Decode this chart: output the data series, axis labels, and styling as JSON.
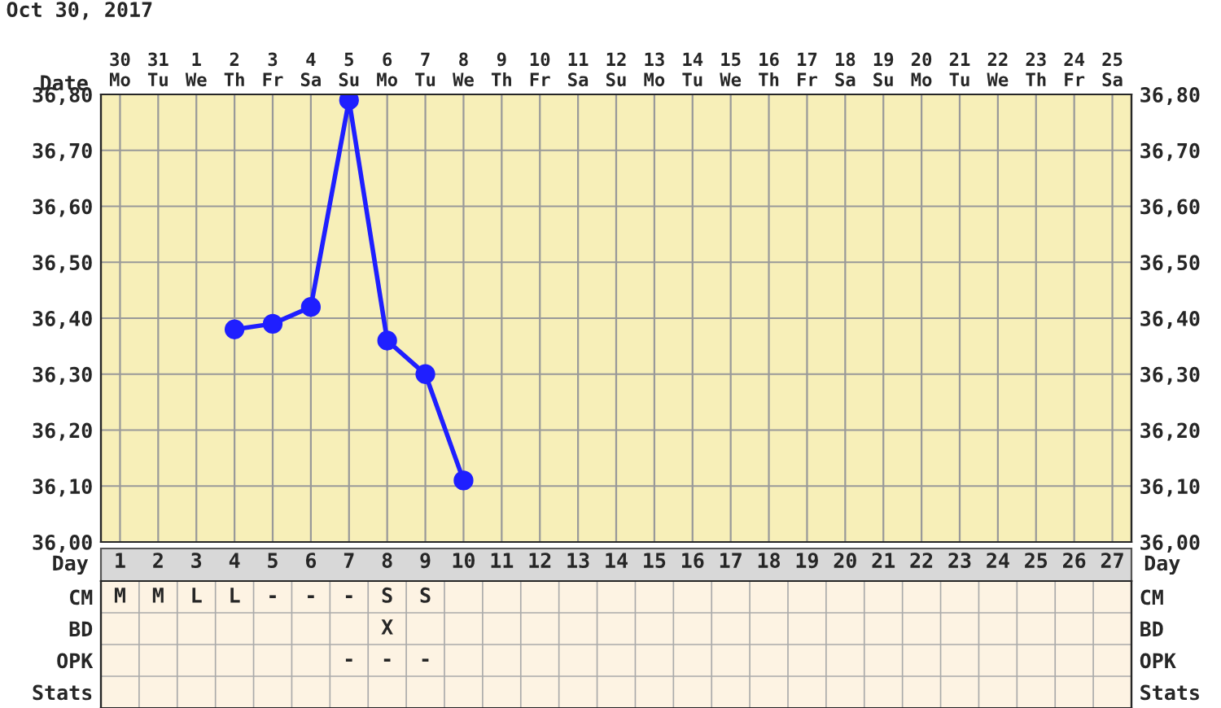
{
  "chart_data": [
    {
      "type": "line",
      "title": "Oct 30, 2017",
      "xlabel": "Date",
      "categories": [
        "30\nMo",
        "31\nTu",
        "1\nWe",
        "2\nTh",
        "3\nFr",
        "4\nSa",
        "5\nSu",
        "6\nMo",
        "7\nTu",
        "8\nWe",
        "9\nTh",
        "10\nFr",
        "11\nSa",
        "12\nSu",
        "13\nMo",
        "14\nTu",
        "15\nWe",
        "16\nTh",
        "17\nFr",
        "18\nSa",
        "19\nSu",
        "20\nMo",
        "21\nTu",
        "22\nWe",
        "23\nTh",
        "24\nFr",
        "25\nSa"
      ],
      "series": [
        {
          "color": "#1f1fff",
          "values": [
            null,
            null,
            null,
            36.38,
            36.39,
            36.42,
            36.79,
            36.36,
            36.3,
            36.11,
            null,
            null,
            null,
            null,
            null,
            null,
            null,
            null,
            null,
            null,
            null,
            null,
            null,
            null,
            null,
            null,
            null
          ]
        }
      ],
      "ylim": [
        36.0,
        36.8
      ],
      "yticks": [
        {
          "value": 36.0,
          "label": "36,00"
        },
        {
          "value": 36.1,
          "label": "36,10"
        },
        {
          "value": 36.2,
          "label": "36,20"
        },
        {
          "value": 36.3,
          "label": "36,30"
        },
        {
          "value": 36.4,
          "label": "36,40"
        },
        {
          "value": 36.5,
          "label": "36,50"
        },
        {
          "value": 36.6,
          "label": "36,60"
        },
        {
          "value": 36.7,
          "label": "36,70"
        },
        {
          "value": 36.8,
          "label": "36,80"
        }
      ],
      "y2lim": [
        36.0,
        36.8
      ],
      "y2ticks": [
        {
          "value": 36.0,
          "label": "36,00"
        },
        {
          "value": 36.1,
          "label": "36,10"
        },
        {
          "value": 36.2,
          "label": "36,20"
        },
        {
          "value": 36.3,
          "label": "36,30"
        },
        {
          "value": 36.4,
          "label": "36,40"
        },
        {
          "value": 36.5,
          "label": "36,50"
        },
        {
          "value": 36.6,
          "label": "36,60"
        },
        {
          "value": 36.7,
          "label": "36,70"
        },
        {
          "value": 36.8,
          "label": "36,80"
        }
      ],
      "grid": true,
      "marker": "circle",
      "line_style": "solid",
      "legend": false
    },
    {
      "type": "heatmap",
      "xlabel": "Day",
      "cells": [
        [
          null,
          null,
          null,
          null,
          null,
          null,
          null,
          null,
          null,
          null,
          null,
          null,
          null,
          null,
          null,
          null,
          null,
          null,
          null,
          null,
          null,
          null,
          null,
          null,
          null,
          null,
          null
        ],
        [
          null,
          null,
          null,
          null,
          null,
          null,
          null,
          null,
          null,
          null,
          null,
          null,
          null,
          null,
          null,
          null,
          null,
          null,
          null,
          null,
          null,
          null,
          null,
          null,
          null,
          null,
          null
        ],
        [
          null,
          null,
          null,
          null,
          null,
          null,
          null,
          null,
          null,
          null,
          null,
          null,
          null,
          null,
          null,
          null,
          null,
          null,
          null,
          null,
          null,
          null,
          null,
          null,
          null,
          null,
          null
        ],
        [
          null,
          null,
          null,
          null,
          null,
          null,
          null,
          null,
          null,
          null,
          null,
          null,
          null,
          null,
          null,
          null,
          null,
          null,
          null,
          null,
          null,
          null,
          null,
          null,
          null,
          null,
          null
        ]
      ],
      "categories": [
        "1",
        "2",
        "3",
        "4",
        "5",
        "6",
        "7",
        "8",
        "9",
        "10",
        "11",
        "12",
        "13",
        "14",
        "15",
        "16",
        "17",
        "18",
        "19",
        "20",
        "21",
        "22",
        "23",
        "24",
        "25",
        "26",
        "27"
      ],
      "y_categories": [
        "CM",
        "BD",
        "OPK",
        "Stats"
      ],
      "y2_categories": [
        "CM",
        "BD",
        "OPK",
        "Stats"
      ],
      "cell_labels": [
        [
          "M",
          "M",
          "L",
          "L",
          "-",
          "-",
          "-",
          "S",
          "S",
          null,
          null,
          null,
          null,
          null,
          null,
          null,
          null,
          null,
          null,
          null,
          null,
          null,
          null,
          null,
          null,
          null,
          null
        ],
        [
          null,
          null,
          null,
          null,
          null,
          null,
          null,
          "X",
          null,
          null,
          null,
          null,
          null,
          null,
          null,
          null,
          null,
          null,
          null,
          null,
          null,
          null,
          null,
          null,
          null,
          null,
          null
        ],
        [
          null,
          null,
          null,
          null,
          null,
          null,
          "-",
          "-",
          "-",
          null,
          null,
          null,
          null,
          null,
          null,
          null,
          null,
          null,
          null,
          null,
          null,
          null,
          null,
          null,
          null,
          null,
          null
        ],
        [
          null,
          null,
          null,
          null,
          null,
          null,
          null,
          null,
          null,
          null,
          null,
          null,
          null,
          null,
          null,
          null,
          null,
          null,
          null,
          null,
          null,
          null,
          null,
          null,
          null,
          null,
          null
        ]
      ]
    }
  ]
}
